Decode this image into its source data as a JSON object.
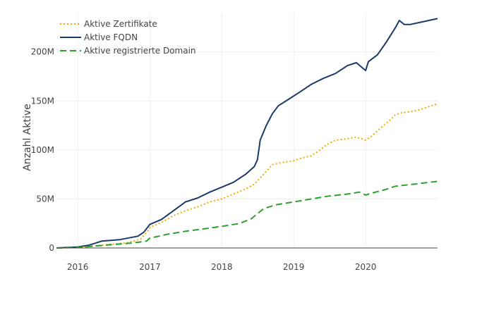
{
  "chart_data": {
    "type": "line",
    "ylabel": "Anzahl Aktive",
    "xlabel": "",
    "x_range": [
      "2015-09-15",
      "2020-12-31"
    ],
    "x_ticks": [
      "2016",
      "2017",
      "2018",
      "2019",
      "2020"
    ],
    "y_range": [
      0,
      240000000
    ],
    "y_ticks": [
      0,
      50000000,
      100000000,
      150000000,
      200000000
    ],
    "y_tick_labels": [
      "0",
      "50M",
      "100M",
      "150M",
      "200M"
    ],
    "grid": true,
    "legend_position": "top-left",
    "series": [
      {
        "name": "Aktive Zertifikate",
        "color": "#f5a800",
        "dash": "dotted",
        "points": [
          [
            "2015-09-15",
            0
          ],
          [
            "2016-01-01",
            500000
          ],
          [
            "2016-03-01",
            1500000
          ],
          [
            "2016-06-01",
            3500000
          ],
          [
            "2016-09-01",
            5000000
          ],
          [
            "2016-11-15",
            9000000
          ],
          [
            "2016-12-25",
            18000000
          ],
          [
            "2017-01-01",
            21000000
          ],
          [
            "2017-03-01",
            26000000
          ],
          [
            "2017-05-01",
            33000000
          ],
          [
            "2017-07-01",
            38000000
          ],
          [
            "2017-09-01",
            42000000
          ],
          [
            "2017-11-01",
            47000000
          ],
          [
            "2018-01-01",
            50000000
          ],
          [
            "2018-03-01",
            55000000
          ],
          [
            "2018-05-01",
            60000000
          ],
          [
            "2018-06-15",
            65000000
          ],
          [
            "2018-08-01",
            75000000
          ],
          [
            "2018-09-15",
            85000000
          ],
          [
            "2018-11-01",
            87000000
          ],
          [
            "2019-01-01",
            89000000
          ],
          [
            "2019-02-15",
            92000000
          ],
          [
            "2019-04-01",
            94000000
          ],
          [
            "2019-05-15",
            100000000
          ],
          [
            "2019-06-15",
            105000000
          ],
          [
            "2019-08-01",
            110000000
          ],
          [
            "2019-09-15",
            111000000
          ],
          [
            "2019-11-15",
            113000000
          ],
          [
            "2020-01-01",
            110000000
          ],
          [
            "2020-02-01",
            114000000
          ],
          [
            "2020-03-15",
            122000000
          ],
          [
            "2020-05-01",
            130000000
          ],
          [
            "2020-06-01",
            136000000
          ],
          [
            "2020-07-01",
            138000000
          ],
          [
            "2020-08-15",
            139000000
          ],
          [
            "2020-10-01",
            141000000
          ],
          [
            "2020-11-15",
            144000000
          ],
          [
            "2020-12-31",
            147000000
          ]
        ]
      },
      {
        "name": "Aktive FQDN",
        "color": "#1a3a6b",
        "dash": "solid",
        "points": [
          [
            "2015-09-15",
            0
          ],
          [
            "2016-01-01",
            1000000
          ],
          [
            "2016-03-01",
            3000000
          ],
          [
            "2016-05-01",
            7000000
          ],
          [
            "2016-08-01",
            8500000
          ],
          [
            "2016-11-01",
            12000000
          ],
          [
            "2016-12-01",
            16000000
          ],
          [
            "2017-01-01",
            24000000
          ],
          [
            "2017-03-01",
            29000000
          ],
          [
            "2017-05-01",
            38000000
          ],
          [
            "2017-07-01",
            47000000
          ],
          [
            "2017-09-01",
            51000000
          ],
          [
            "2017-11-01",
            57000000
          ],
          [
            "2018-01-01",
            62000000
          ],
          [
            "2018-03-01",
            67000000
          ],
          [
            "2018-05-01",
            75000000
          ],
          [
            "2018-06-15",
            83000000
          ],
          [
            "2018-07-01",
            90000000
          ],
          [
            "2018-07-15",
            110000000
          ],
          [
            "2018-08-15",
            125000000
          ],
          [
            "2018-09-15",
            137000000
          ],
          [
            "2018-10-15",
            145000000
          ],
          [
            "2018-12-01",
            151000000
          ],
          [
            "2019-02-01",
            159000000
          ],
          [
            "2019-04-01",
            167000000
          ],
          [
            "2019-06-01",
            173000000
          ],
          [
            "2019-08-01",
            178000000
          ],
          [
            "2019-10-01",
            186000000
          ],
          [
            "2019-11-15",
            189000000
          ],
          [
            "2020-01-01",
            181000000
          ],
          [
            "2020-01-15",
            190000000
          ],
          [
            "2020-03-01",
            197000000
          ],
          [
            "2020-04-15",
            210000000
          ],
          [
            "2020-06-01",
            225000000
          ],
          [
            "2020-06-20",
            232000000
          ],
          [
            "2020-07-15",
            228000000
          ],
          [
            "2020-08-15",
            228000000
          ],
          [
            "2020-10-01",
            230000000
          ],
          [
            "2020-12-31",
            234000000
          ]
        ]
      },
      {
        "name": "Aktive registrierte Domain",
        "color": "#2ca02c",
        "dash": "dashed",
        "points": [
          [
            "2015-09-15",
            0
          ],
          [
            "2016-01-01",
            500000
          ],
          [
            "2016-04-01",
            2000000
          ],
          [
            "2016-07-01",
            3500000
          ],
          [
            "2016-10-01",
            5000000
          ],
          [
            "2016-12-15",
            7000000
          ],
          [
            "2017-01-01",
            10000000
          ],
          [
            "2017-04-01",
            14000000
          ],
          [
            "2017-07-01",
            17000000
          ],
          [
            "2017-10-01",
            19500000
          ],
          [
            "2018-01-01",
            22000000
          ],
          [
            "2018-04-01",
            25000000
          ],
          [
            "2018-06-01",
            30000000
          ],
          [
            "2018-07-01",
            35000000
          ],
          [
            "2018-08-01",
            40000000
          ],
          [
            "2018-10-01",
            44000000
          ],
          [
            "2019-01-01",
            47000000
          ],
          [
            "2019-04-01",
            50000000
          ],
          [
            "2019-07-01",
            53000000
          ],
          [
            "2019-10-01",
            55000000
          ],
          [
            "2019-12-01",
            57000000
          ],
          [
            "2020-01-01",
            54000000
          ],
          [
            "2020-02-01",
            56000000
          ],
          [
            "2020-04-01",
            59000000
          ],
          [
            "2020-06-01",
            63000000
          ],
          [
            "2020-09-01",
            65000000
          ],
          [
            "2020-12-31",
            68000000
          ]
        ]
      }
    ]
  }
}
